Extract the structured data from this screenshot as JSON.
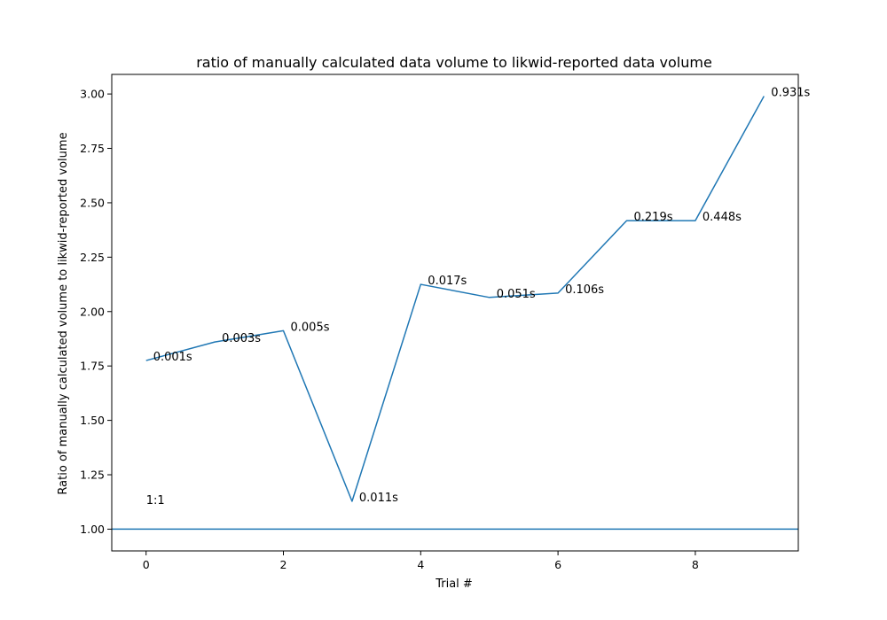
{
  "chart_data": {
    "type": "line",
    "title": "ratio of manually calculated data volume to likwid-reported data volume",
    "xlabel": "Trial #",
    "ylabel": "Ratio of manually calculated volume to likwid-reported volume",
    "xlim": [
      -0.5,
      9.5
    ],
    "ylim": [
      0.9,
      3.09
    ],
    "x_ticks": [
      0,
      2,
      4,
      6,
      8
    ],
    "y_ticks": [
      1.0,
      1.25,
      1.5,
      1.75,
      2.0,
      2.25,
      2.5,
      2.75,
      3.0
    ],
    "x_tick_labels": [
      "0",
      "2",
      "4",
      "6",
      "8"
    ],
    "y_tick_labels": [
      "1.00",
      "1.25",
      "1.50",
      "1.75",
      "2.00",
      "2.25",
      "2.50",
      "2.75",
      "3.00"
    ],
    "grid": false,
    "line_color": "#1f77b4",
    "series": [
      {
        "x": [
          0,
          1,
          2,
          3,
          4,
          5,
          6,
          7,
          8,
          9
        ],
        "values": [
          1.775,
          1.86,
          1.912,
          1.128,
          2.125,
          2.065,
          2.085,
          2.418,
          2.418,
          2.99
        ],
        "labels": [
          "0.001s",
          "0.003s",
          "0.005s",
          "0.011s",
          "0.017s",
          "0.051s",
          "0.106s",
          "0.219s",
          "0.448s",
          "0.931s"
        ]
      }
    ],
    "reference_line": {
      "y": 1.0,
      "label": "1:1"
    }
  }
}
